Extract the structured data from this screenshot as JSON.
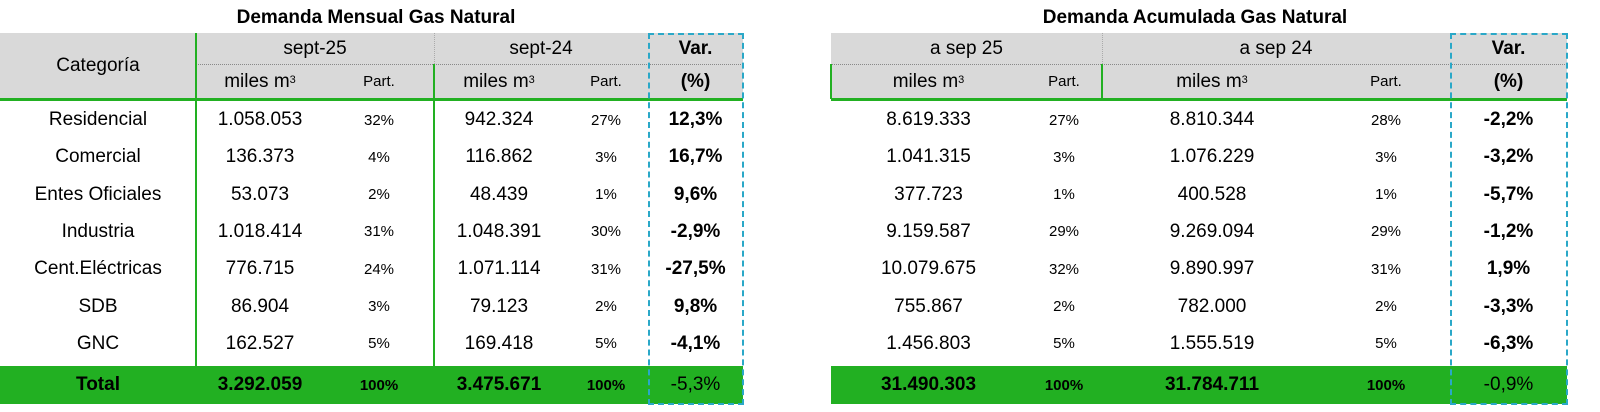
{
  "left": {
    "title": "Demanda Mensual Gas Natural",
    "header": {
      "category": "Categoría",
      "period_a": "sept-25",
      "period_b": "sept-24",
      "var": "Var.",
      "unit": "miles m",
      "unit_sup": "3",
      "part": "Part.",
      "pct": "(%)"
    },
    "rows": [
      {
        "cat": "Residencial",
        "a": "1.058.053",
        "pa": "32%",
        "b": "942.324",
        "pb": "27%",
        "var": "12,3%"
      },
      {
        "cat": "Comercial",
        "a": "136.373",
        "pa": "4%",
        "b": "116.862",
        "pb": "3%",
        "var": "16,7%"
      },
      {
        "cat": "Entes Oficiales",
        "a": "53.073",
        "pa": "2%",
        "b": "48.439",
        "pb": "1%",
        "var": "9,6%"
      },
      {
        "cat": "Industria",
        "a": "1.018.414",
        "pa": "31%",
        "b": "1.048.391",
        "pb": "30%",
        "var": "-2,9%"
      },
      {
        "cat": "Cent.Eléctricas",
        "a": "776.715",
        "pa": "24%",
        "b": "1.071.114",
        "pb": "31%",
        "var": "-27,5%"
      },
      {
        "cat": "SDB",
        "a": "86.904",
        "pa": "3%",
        "b": "79.123",
        "pb": "2%",
        "var": "9,8%"
      },
      {
        "cat": "GNC",
        "a": "162.527",
        "pa": "5%",
        "b": "169.418",
        "pb": "5%",
        "var": "-4,1%"
      }
    ],
    "total": {
      "cat": "Total",
      "a": "3.292.059",
      "pa": "100%",
      "b": "3.475.671",
      "pb": "100%",
      "var": "-5,3%"
    }
  },
  "right": {
    "title": "Demanda Acumulada Gas Natural",
    "header": {
      "period_a": "a sep 25",
      "period_b": "a sep 24",
      "var": "Var.",
      "unit": "miles m",
      "unit_sup": "3",
      "part": "Part.",
      "pct": "(%)"
    },
    "rows": [
      {
        "a": "8.619.333",
        "pa": "27%",
        "b": "8.810.344",
        "pb": "28%",
        "var": "-2,2%"
      },
      {
        "a": "1.041.315",
        "pa": "3%",
        "b": "1.076.229",
        "pb": "3%",
        "var": "-3,2%"
      },
      {
        "a": "377.723",
        "pa": "1%",
        "b": "400.528",
        "pb": "1%",
        "var": "-5,7%"
      },
      {
        "a": "9.159.587",
        "pa": "29%",
        "b": "9.269.094",
        "pb": "29%",
        "var": "-1,2%"
      },
      {
        "a": "10.079.675",
        "pa": "32%",
        "b": "9.890.997",
        "pb": "31%",
        "var": "1,9%"
      },
      {
        "a": "755.867",
        "pa": "2%",
        "b": "782.000",
        "pb": "2%",
        "var": "-3,3%"
      },
      {
        "a": "1.456.803",
        "pa": "5%",
        "b": "1.555.519",
        "pb": "5%",
        "var": "-6,3%"
      }
    ],
    "total": {
      "a": "31.490.303",
      "pa": "100%",
      "b": "31.784.711",
      "pb": "100%",
      "var": "-0,9%"
    }
  }
}
